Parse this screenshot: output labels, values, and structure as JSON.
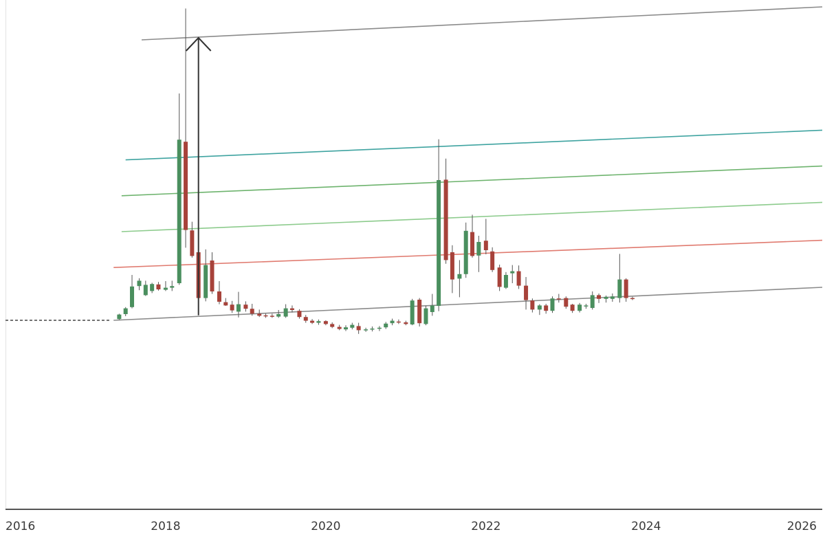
{
  "chart_data": {
    "type": "candlestick",
    "title": "",
    "xlabel": "",
    "ylabel": "",
    "xlim": [
      2016,
      2026.2
    ],
    "ylim": [
      0,
      100
    ],
    "grid": false,
    "x_ticks": [
      "2016",
      "2018",
      "2020",
      "2022",
      "2024",
      "2026"
    ],
    "colors": {
      "up": "#4a8f5e",
      "down": "#a7423a",
      "trendline": "#8a8a8a",
      "level_teal": "#3ea3a0",
      "level_green": "#6db36d",
      "level_lightgreen": "#8ccb8c",
      "level_red": "#e07a6f",
      "arrow": "#333333",
      "axis": "#555555"
    },
    "pre_listing_dashed": {
      "x": [
        2016.0,
        2017.3
      ],
      "y": 24.0
    },
    "candles": [
      {
        "t": 2017.42,
        "o": 24.3,
        "h": 25.6,
        "l": 24.1,
        "c": 25.4
      },
      {
        "t": 2017.5,
        "o": 25.5,
        "h": 27.2,
        "l": 25.0,
        "c": 26.9
      },
      {
        "t": 2017.58,
        "o": 27.2,
        "h": 35.0,
        "l": 26.9,
        "c": 32.2
      },
      {
        "t": 2017.67,
        "o": 32.3,
        "h": 34.2,
        "l": 31.3,
        "c": 33.6
      },
      {
        "t": 2017.75,
        "o": 30.1,
        "h": 33.6,
        "l": 29.9,
        "c": 32.6
      },
      {
        "t": 2017.83,
        "o": 31.1,
        "h": 33.1,
        "l": 30.6,
        "c": 32.8
      },
      {
        "t": 2017.91,
        "o": 32.7,
        "h": 33.3,
        "l": 31.2,
        "c": 31.5
      },
      {
        "t": 2018.0,
        "o": 31.4,
        "h": 33.5,
        "l": 31.1,
        "c": 31.9
      },
      {
        "t": 2018.08,
        "o": 31.9,
        "h": 33.6,
        "l": 31.1,
        "c": 32.3
      },
      {
        "t": 2018.17,
        "o": 33.0,
        "h": 79.0,
        "l": 32.6,
        "c": 67.8
      },
      {
        "t": 2018.25,
        "o": 67.3,
        "h": 99.6,
        "l": 41.6,
        "c": 45.9
      },
      {
        "t": 2018.33,
        "o": 45.8,
        "h": 47.9,
        "l": 39.2,
        "c": 39.6
      },
      {
        "t": 2018.41,
        "o": 40.5,
        "h": 44.9,
        "l": 28.6,
        "c": 29.4
      },
      {
        "t": 2018.5,
        "o": 29.4,
        "h": 41.2,
        "l": 28.6,
        "c": 37.4
      },
      {
        "t": 2018.58,
        "o": 38.5,
        "h": 40.5,
        "l": 30.4,
        "c": 31.0
      },
      {
        "t": 2018.67,
        "o": 31.0,
        "h": 33.5,
        "l": 27.9,
        "c": 28.5
      },
      {
        "t": 2018.75,
        "o": 28.4,
        "h": 29.4,
        "l": 27.5,
        "c": 27.6
      },
      {
        "t": 2018.83,
        "o": 27.8,
        "h": 28.7,
        "l": 25.8,
        "c": 26.4
      },
      {
        "t": 2018.91,
        "o": 26.1,
        "h": 30.9,
        "l": 24.7,
        "c": 27.9
      },
      {
        "t": 2019.0,
        "o": 27.8,
        "h": 28.6,
        "l": 26.1,
        "c": 26.8
      },
      {
        "t": 2019.08,
        "o": 26.8,
        "h": 28.0,
        "l": 25.1,
        "c": 25.6
      },
      {
        "t": 2019.17,
        "o": 25.6,
        "h": 26.6,
        "l": 24.8,
        "c": 25.1
      },
      {
        "t": 2019.25,
        "o": 25.2,
        "h": 25.6,
        "l": 24.6,
        "c": 25.0
      },
      {
        "t": 2019.33,
        "o": 25.1,
        "h": 25.6,
        "l": 24.6,
        "c": 24.9
      },
      {
        "t": 2019.41,
        "o": 24.9,
        "h": 26.5,
        "l": 24.6,
        "c": 25.5
      },
      {
        "t": 2019.5,
        "o": 24.9,
        "h": 27.9,
        "l": 24.6,
        "c": 26.9
      },
      {
        "t": 2019.58,
        "o": 26.9,
        "h": 27.6,
        "l": 25.9,
        "c": 26.5
      },
      {
        "t": 2019.67,
        "o": 26.3,
        "h": 26.7,
        "l": 24.4,
        "c": 24.8
      },
      {
        "t": 2019.75,
        "o": 24.8,
        "h": 25.3,
        "l": 23.4,
        "c": 23.9
      },
      {
        "t": 2019.83,
        "o": 23.9,
        "h": 24.3,
        "l": 23.1,
        "c": 23.4
      },
      {
        "t": 2019.91,
        "o": 23.4,
        "h": 24.2,
        "l": 22.9,
        "c": 23.8
      },
      {
        "t": 2020.0,
        "o": 23.8,
        "h": 24.0,
        "l": 22.8,
        "c": 23.1
      },
      {
        "t": 2020.08,
        "o": 23.1,
        "h": 23.5,
        "l": 22.1,
        "c": 22.4
      },
      {
        "t": 2020.17,
        "o": 22.4,
        "h": 22.9,
        "l": 21.6,
        "c": 21.9
      },
      {
        "t": 2020.25,
        "o": 21.8,
        "h": 22.8,
        "l": 21.4,
        "c": 22.3
      },
      {
        "t": 2020.33,
        "o": 22.2,
        "h": 23.4,
        "l": 21.8,
        "c": 22.9
      },
      {
        "t": 2020.41,
        "o": 22.6,
        "h": 23.4,
        "l": 20.7,
        "c": 21.6
      },
      {
        "t": 2020.5,
        "o": 21.6,
        "h": 22.2,
        "l": 21.2,
        "c": 21.8
      },
      {
        "t": 2020.58,
        "o": 21.8,
        "h": 22.5,
        "l": 21.3,
        "c": 22.0
      },
      {
        "t": 2020.67,
        "o": 22.0,
        "h": 22.6,
        "l": 21.4,
        "c": 22.2
      },
      {
        "t": 2020.75,
        "o": 22.3,
        "h": 23.6,
        "l": 21.9,
        "c": 23.2
      },
      {
        "t": 2020.83,
        "o": 23.3,
        "h": 24.4,
        "l": 22.8,
        "c": 23.9
      },
      {
        "t": 2020.91,
        "o": 23.7,
        "h": 24.2,
        "l": 23.1,
        "c": 23.5
      },
      {
        "t": 2021.0,
        "o": 23.5,
        "h": 23.9,
        "l": 22.8,
        "c": 23.1
      },
      {
        "t": 2021.08,
        "o": 23.0,
        "h": 29.2,
        "l": 22.8,
        "c": 28.8
      },
      {
        "t": 2021.17,
        "o": 29.0,
        "h": 29.4,
        "l": 22.5,
        "c": 23.3
      },
      {
        "t": 2021.25,
        "o": 23.1,
        "h": 27.5,
        "l": 22.8,
        "c": 26.9
      },
      {
        "t": 2021.33,
        "o": 26.0,
        "h": 30.4,
        "l": 25.1,
        "c": 27.6
      },
      {
        "t": 2021.41,
        "o": 27.5,
        "h": 67.9,
        "l": 26.2,
        "c": 58.0
      },
      {
        "t": 2021.5,
        "o": 58.1,
        "h": 63.2,
        "l": 37.7,
        "c": 38.6
      },
      {
        "t": 2021.58,
        "o": 40.5,
        "h": 42.2,
        "l": 30.6,
        "c": 33.9
      },
      {
        "t": 2021.67,
        "o": 34.1,
        "h": 38.6,
        "l": 29.6,
        "c": 35.2
      },
      {
        "t": 2021.75,
        "o": 35.2,
        "h": 47.7,
        "l": 34.3,
        "c": 45.7
      },
      {
        "t": 2021.83,
        "o": 45.4,
        "h": 49.6,
        "l": 39.2,
        "c": 39.6
      },
      {
        "t": 2021.91,
        "o": 39.7,
        "h": 44.5,
        "l": 35.7,
        "c": 43.0
      },
      {
        "t": 2022.0,
        "o": 43.3,
        "h": 48.6,
        "l": 40.0,
        "c": 41.0
      },
      {
        "t": 2022.08,
        "o": 40.7,
        "h": 41.7,
        "l": 35.7,
        "c": 36.2
      },
      {
        "t": 2022.17,
        "o": 36.8,
        "h": 37.5,
        "l": 31.1,
        "c": 32.1
      },
      {
        "t": 2022.25,
        "o": 31.9,
        "h": 35.7,
        "l": 31.6,
        "c": 35.0
      },
      {
        "t": 2022.33,
        "o": 35.4,
        "h": 37.4,
        "l": 33.0,
        "c": 35.9
      },
      {
        "t": 2022.41,
        "o": 35.9,
        "h": 37.3,
        "l": 31.6,
        "c": 32.4
      },
      {
        "t": 2022.5,
        "o": 32.4,
        "h": 34.5,
        "l": 26.6,
        "c": 28.9
      },
      {
        "t": 2022.58,
        "o": 28.8,
        "h": 29.3,
        "l": 25.9,
        "c": 26.6
      },
      {
        "t": 2022.67,
        "o": 26.6,
        "h": 27.9,
        "l": 25.3,
        "c": 27.6
      },
      {
        "t": 2022.75,
        "o": 27.6,
        "h": 28.0,
        "l": 25.6,
        "c": 26.3
      },
      {
        "t": 2022.83,
        "o": 26.3,
        "h": 29.8,
        "l": 25.8,
        "c": 29.3
      },
      {
        "t": 2022.91,
        "o": 29.3,
        "h": 30.4,
        "l": 28.3,
        "c": 29.1
      },
      {
        "t": 2023.0,
        "o": 29.4,
        "h": 29.8,
        "l": 26.8,
        "c": 27.3
      },
      {
        "t": 2023.08,
        "o": 27.8,
        "h": 28.0,
        "l": 25.8,
        "c": 26.3
      },
      {
        "t": 2023.17,
        "o": 26.3,
        "h": 28.2,
        "l": 25.9,
        "c": 27.8
      },
      {
        "t": 2023.25,
        "o": 27.4,
        "h": 28.0,
        "l": 26.8,
        "c": 27.6
      },
      {
        "t": 2023.33,
        "o": 27.0,
        "h": 31.0,
        "l": 26.6,
        "c": 30.1
      },
      {
        "t": 2023.41,
        "o": 30.1,
        "h": 30.5,
        "l": 28.2,
        "c": 29.2
      },
      {
        "t": 2023.5,
        "o": 29.2,
        "h": 30.0,
        "l": 28.3,
        "c": 29.7
      },
      {
        "t": 2023.58,
        "o": 29.2,
        "h": 30.5,
        "l": 28.5,
        "c": 29.8
      },
      {
        "t": 2023.67,
        "o": 29.4,
        "h": 40.1,
        "l": 28.3,
        "c": 33.9
      },
      {
        "t": 2023.75,
        "o": 33.9,
        "h": 34.2,
        "l": 28.5,
        "c": 29.4
      },
      {
        "t": 2023.83,
        "o": 29.4,
        "h": 29.7,
        "l": 28.9,
        "c": 29.2
      }
    ],
    "lines": [
      {
        "name": "",
        "kind": "channel-bottom",
        "x": [
          2017.35,
          2026.2
        ],
        "y": [
          24.0,
          32.0
        ]
      },
      {
        "name": "",
        "kind": "channel-top",
        "x": [
          2017.7,
          2026.2
        ],
        "y": [
          92.0,
          100.0
        ]
      },
      {
        "name": "",
        "kind": "level-teal",
        "x": [
          2017.5,
          2026.2
        ],
        "y": [
          62.9,
          70.1
        ]
      },
      {
        "name": "",
        "kind": "level-green",
        "x": [
          2017.45,
          2026.2
        ],
        "y": [
          54.2,
          61.4
        ]
      },
      {
        "name": "",
        "kind": "level-lightgreen",
        "x": [
          2017.45,
          2026.2
        ],
        "y": [
          45.5,
          52.6
        ]
      },
      {
        "name": "",
        "kind": "level-red",
        "x": [
          2017.35,
          2026.2
        ],
        "y": [
          36.8,
          43.4
        ]
      }
    ],
    "arrow": {
      "x": 2018.41,
      "y_from": 25.2,
      "y_to": 92.5
    }
  }
}
